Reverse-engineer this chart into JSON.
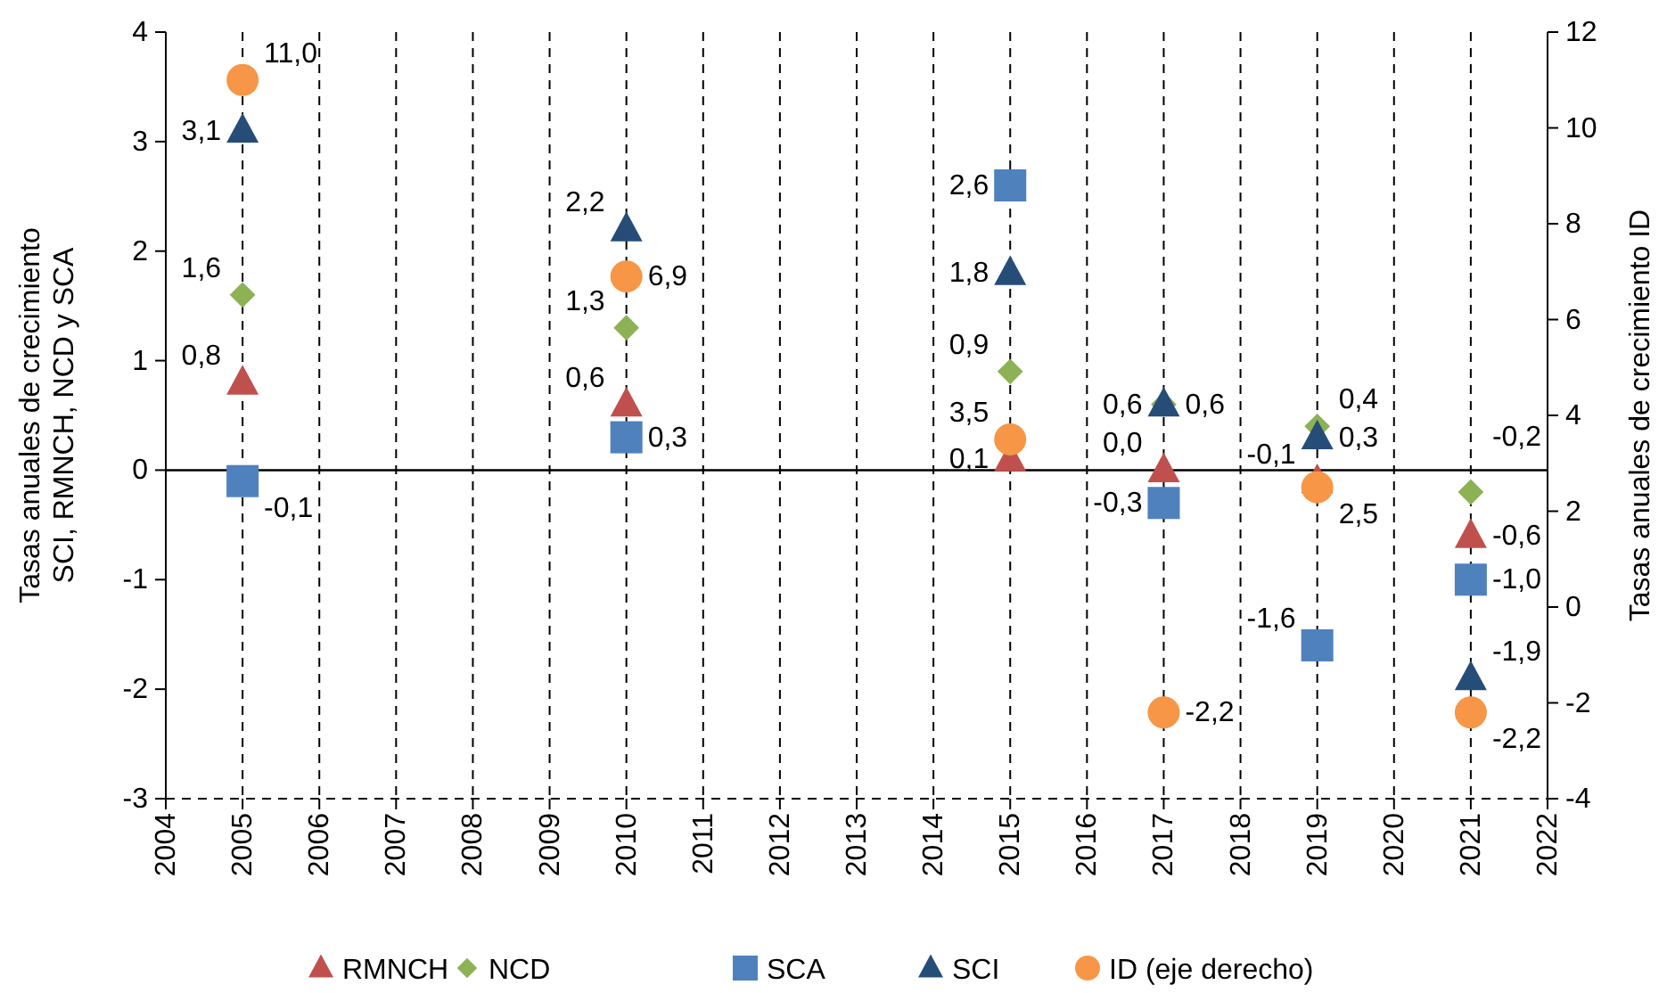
{
  "chart_data": {
    "type": "scatter",
    "ylabel": "Tasas anuales de crecimiento\nSCI, RMNCH, NCD y SCA",
    "y2label": "Tasas anuales de crecimiento ID",
    "x": [
      2005,
      2010,
      2015,
      2017,
      2019,
      2021
    ],
    "xlim": [
      2004,
      2022
    ],
    "xticks": [
      2004,
      2005,
      2006,
      2007,
      2008,
      2009,
      2010,
      2011,
      2012,
      2013,
      2014,
      2015,
      2016,
      2017,
      2018,
      2019,
      2020,
      2021,
      2022
    ],
    "ylim": [
      -3,
      4
    ],
    "yticks": [
      -3,
      -2,
      -1,
      0,
      1,
      2,
      3,
      4
    ],
    "y2lim": [
      -4,
      12
    ],
    "y2ticks": [
      -4,
      -2,
      0,
      2,
      4,
      6,
      8,
      10,
      12
    ],
    "grid": "x",
    "legend": "bottom",
    "ref_lines": [
      {
        "axis": "y",
        "value": 0,
        "color": "#000000",
        "line_style": "solid"
      }
    ],
    "series": [
      {
        "name": "RMNCH",
        "color": "#c0504d",
        "marker": "triangle",
        "values": [
          0.8,
          0.6,
          0.1,
          0.0,
          -0.1,
          -0.6
        ],
        "value_labels": [
          "0,8",
          "0,6",
          "0,1",
          "0,0",
          "-0,1",
          "-0,6"
        ]
      },
      {
        "name": "NCD",
        "color": "#8db255",
        "marker": "diamond",
        "values": [
          1.6,
          1.3,
          0.9,
          0.6,
          0.4,
          -0.2
        ],
        "value_labels": [
          "1,6",
          "1,3",
          "0,9",
          "0,6",
          "0,4",
          "-0,2"
        ]
      },
      {
        "name": "SCA",
        "color": "#4f81bd",
        "marker": "square",
        "values": [
          -0.1,
          0.3,
          2.6,
          -0.3,
          -1.6,
          -1.0
        ],
        "value_labels": [
          "-0,1",
          "0,3",
          "2,6",
          "-0,3",
          "-1,6",
          "-1,0"
        ]
      },
      {
        "name": "SCI",
        "color": "#254d78",
        "marker": "triangle",
        "values": [
          3.1,
          2.2,
          1.8,
          0.6,
          0.3,
          -1.9
        ],
        "value_labels": [
          "3,1",
          "2,2",
          "1,8",
          "0,6",
          "0,3",
          "-1,9"
        ]
      },
      {
        "name": "ID (eje derecho)",
        "color": "#f79646",
        "marker": "circle",
        "axis": "y2",
        "values": [
          11.0,
          6.9,
          3.5,
          -2.2,
          2.5,
          -2.2
        ],
        "value_labels": [
          "11,0",
          "6,9",
          "3,5",
          "-2,2",
          "2,5",
          "-2,2"
        ]
      }
    ]
  }
}
